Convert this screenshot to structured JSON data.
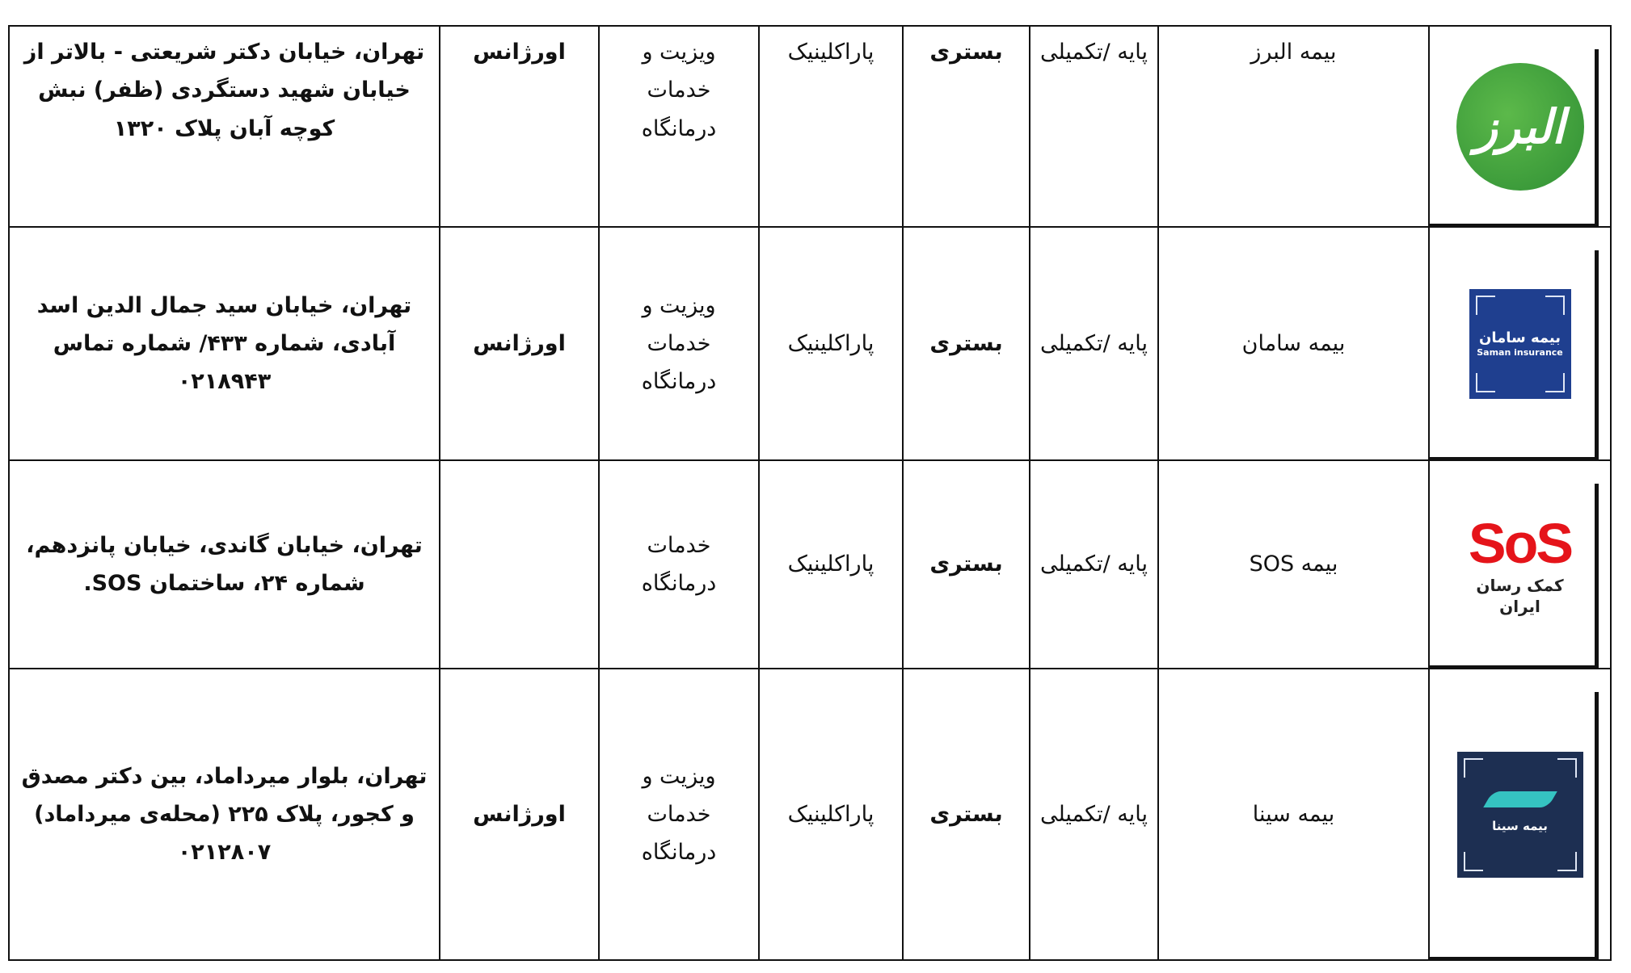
{
  "colors": {
    "alborz_green": "#3fa53d",
    "saman_blue": "#1f3f8f",
    "sos_red": "#e5141a",
    "sina_navy": "#1d2f52",
    "sina_teal": "#35c3c1"
  },
  "rows": [
    {
      "logo_text": "البرز",
      "name": "بیمه البرز",
      "type": "پایه /تکمیلی",
      "hospital": "بستری",
      "paraclinic": "پاراکلینیک",
      "visit": "ویزیت و خدمات درمانگاه",
      "emergency": "اورژانس",
      "address": "تهران، خیابان دکتر شریعتی - بالاتر از خیابان شهید دستگردی (ظفر) نبش کوچه آبان پلاک ۱۳۲۰"
    },
    {
      "logo_text": "بیمه سامان",
      "logo_text_en": "Saman insurance",
      "name": "بیمه سامان",
      "type": "پایه /تکمیلی",
      "hospital": "بستری",
      "paraclinic": "پاراکلینیک",
      "visit": "ویزیت و خدمات درمانگاه",
      "emergency": "اورژانس",
      "address": "تهران، خیابان سید جمال الدین اسد آبادی، شماره ۴۳۳/ شماره تماس ۰۲۱۸۹۴۳"
    },
    {
      "logo_text": "SoS",
      "logo_sub": "کمک رسان ایران",
      "name": "بیمه SOS",
      "type": "پایه /تکمیلی",
      "hospital": "بستری",
      "paraclinic": "پاراکلینیک",
      "visit": "خدمات درمانگاه",
      "emergency": "",
      "address": "تهران، خیابان گاندی، خیابان پانزدهم، شماره ۲۴، ساختمان SOS."
    },
    {
      "logo_text": "بیمه سینا",
      "name": "بیمه سینا",
      "type": "پایه /تکمیلی",
      "hospital": "بستری",
      "paraclinic": "پاراکلینیک",
      "visit": "ویزیت و خدمات درمانگاه",
      "emergency": "اورژانس",
      "address": "تهران، بلوار میرداماد، بین دکتر مصدق و کجور، پلاک ۲۲۵ (محله‌ی میرداماد) ۰۲۱۲۸۰۷"
    }
  ]
}
